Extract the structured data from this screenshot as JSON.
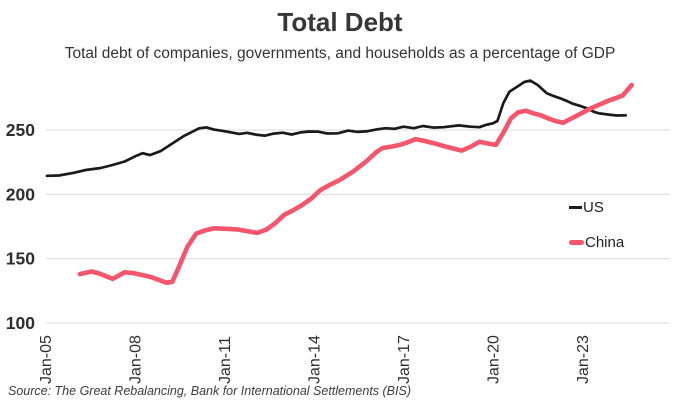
{
  "chart": {
    "title": "Total Debt",
    "subtitle": "Total debt of companies, governments, and households as a percentage of GDP",
    "source": "Source: The Great Rebalancing, Bank for International Settlements (BIS)",
    "legend": {
      "us": "US",
      "china": "China"
    },
    "colors": {
      "us_line": "#1a1a1a",
      "china_line": "#f5566c",
      "grid": "#d9d9d9",
      "text": "#2e2e2e"
    }
  },
  "chart_data": {
    "type": "line",
    "title": "Total Debt",
    "subtitle": "Total debt of companies, governments, and households as a percentage of GDP",
    "xlabel": "",
    "ylabel": "",
    "y_ticks": [
      100,
      150,
      200,
      250
    ],
    "ylim": [
      100,
      293
    ],
    "xlim": [
      2005,
      2025.9
    ],
    "grid": "horizontal",
    "legend_position": "middle-right",
    "x_ticks": [
      {
        "label": "Jan-05",
        "year": 2005
      },
      {
        "label": "Jan-08",
        "year": 2008
      },
      {
        "label": "Jan-11",
        "year": 2011
      },
      {
        "label": "Jan-14",
        "year": 2014
      },
      {
        "label": "Jan-17",
        "year": 2017
      },
      {
        "label": "Jan-20",
        "year": 2020
      },
      {
        "label": "Jan-23",
        "year": 2023
      }
    ],
    "series": [
      {
        "name": "US",
        "color": "#1a1a1a",
        "points": [
          [
            2005.0,
            214.4
          ],
          [
            2005.4,
            214.6
          ],
          [
            2005.9,
            216.7
          ],
          [
            2006.3,
            218.9
          ],
          [
            2006.8,
            220.5
          ],
          [
            2007.2,
            222.8
          ],
          [
            2007.6,
            225.5
          ],
          [
            2008.0,
            230.0
          ],
          [
            2008.2,
            232.0
          ],
          [
            2008.45,
            230.5
          ],
          [
            2008.8,
            233.5
          ],
          [
            2009.2,
            239.5
          ],
          [
            2009.6,
            245.5
          ],
          [
            2009.9,
            249.0
          ],
          [
            2010.1,
            251.3
          ],
          [
            2010.35,
            252.0
          ],
          [
            2010.6,
            250.3
          ],
          [
            2010.9,
            249.3
          ],
          [
            2011.2,
            248.0
          ],
          [
            2011.45,
            247.0
          ],
          [
            2011.7,
            247.8
          ],
          [
            2012.0,
            246.4
          ],
          [
            2012.3,
            245.6
          ],
          [
            2012.6,
            247.2
          ],
          [
            2012.9,
            247.9
          ],
          [
            2013.2,
            246.5
          ],
          [
            2013.5,
            248.1
          ],
          [
            2013.8,
            248.8
          ],
          [
            2014.1,
            248.7
          ],
          [
            2014.4,
            247.3
          ],
          [
            2014.75,
            247.4
          ],
          [
            2015.1,
            249.5
          ],
          [
            2015.4,
            248.5
          ],
          [
            2015.7,
            248.9
          ],
          [
            2016.05,
            250.5
          ],
          [
            2016.35,
            251.4
          ],
          [
            2016.65,
            250.9
          ],
          [
            2016.95,
            252.6
          ],
          [
            2017.3,
            251.4
          ],
          [
            2017.6,
            253.1
          ],
          [
            2017.95,
            251.9
          ],
          [
            2018.3,
            252.2
          ],
          [
            2018.8,
            253.6
          ],
          [
            2019.2,
            252.6
          ],
          [
            2019.5,
            252.2
          ],
          [
            2019.7,
            253.9
          ],
          [
            2019.95,
            255.2
          ],
          [
            2020.1,
            257.0
          ],
          [
            2020.3,
            271.0
          ],
          [
            2020.5,
            279.8
          ],
          [
            2020.85,
            285.0
          ],
          [
            2021.0,
            287.3
          ],
          [
            2021.2,
            288.4
          ],
          [
            2021.45,
            285.0
          ],
          [
            2021.75,
            278.5
          ],
          [
            2022.0,
            276.3
          ],
          [
            2022.2,
            274.6
          ],
          [
            2022.45,
            272.3
          ],
          [
            2022.6,
            270.7
          ],
          [
            2022.9,
            268.5
          ],
          [
            2023.1,
            266.9
          ],
          [
            2023.35,
            264.0
          ],
          [
            2023.5,
            263.0
          ],
          [
            2023.9,
            261.7
          ],
          [
            2024.1,
            261.3
          ],
          [
            2024.4,
            261.4
          ]
        ]
      },
      {
        "name": "China",
        "color": "#f5566c",
        "points": [
          [
            2006.1,
            138.0
          ],
          [
            2006.5,
            140.0
          ],
          [
            2006.75,
            138.5
          ],
          [
            2007.2,
            134.3
          ],
          [
            2007.6,
            139.4
          ],
          [
            2007.9,
            138.8
          ],
          [
            2008.45,
            136.0
          ],
          [
            2008.8,
            133.0
          ],
          [
            2009.0,
            131.3
          ],
          [
            2009.2,
            132.0
          ],
          [
            2009.45,
            145.0
          ],
          [
            2009.7,
            159.0
          ],
          [
            2010.0,
            169.5
          ],
          [
            2010.3,
            172.0
          ],
          [
            2010.6,
            173.6
          ],
          [
            2011.0,
            173.2
          ],
          [
            2011.4,
            172.7
          ],
          [
            2011.8,
            171.0
          ],
          [
            2012.05,
            170.0
          ],
          [
            2012.35,
            172.6
          ],
          [
            2012.65,
            177.6
          ],
          [
            2012.95,
            184.0
          ],
          [
            2013.25,
            187.6
          ],
          [
            2013.55,
            191.6
          ],
          [
            2013.85,
            196.5
          ],
          [
            2014.15,
            203.0
          ],
          [
            2014.45,
            207.0
          ],
          [
            2014.8,
            211.0
          ],
          [
            2015.25,
            217.5
          ],
          [
            2015.7,
            225.6
          ],
          [
            2016.05,
            233.0
          ],
          [
            2016.25,
            236.0
          ],
          [
            2016.55,
            237.1
          ],
          [
            2016.85,
            238.6
          ],
          [
            2017.1,
            240.5
          ],
          [
            2017.35,
            242.9
          ],
          [
            2017.65,
            241.5
          ],
          [
            2018.0,
            239.5
          ],
          [
            2018.4,
            236.9
          ],
          [
            2018.9,
            234.0
          ],
          [
            2019.2,
            237.0
          ],
          [
            2019.5,
            240.9
          ],
          [
            2019.8,
            239.4
          ],
          [
            2020.05,
            238.4
          ],
          [
            2020.3,
            248.0
          ],
          [
            2020.55,
            259.0
          ],
          [
            2020.8,
            263.8
          ],
          [
            2021.05,
            265.0
          ],
          [
            2021.3,
            263.0
          ],
          [
            2021.55,
            261.4
          ],
          [
            2021.8,
            259.0
          ],
          [
            2022.05,
            256.9
          ],
          [
            2022.3,
            255.6
          ],
          [
            2022.55,
            258.6
          ],
          [
            2022.8,
            261.6
          ],
          [
            2023.05,
            264.6
          ],
          [
            2023.3,
            267.6
          ],
          [
            2023.55,
            270.0
          ],
          [
            2023.8,
            272.6
          ],
          [
            2024.05,
            274.6
          ],
          [
            2024.3,
            276.8
          ],
          [
            2024.6,
            285.0
          ]
        ]
      }
    ]
  }
}
